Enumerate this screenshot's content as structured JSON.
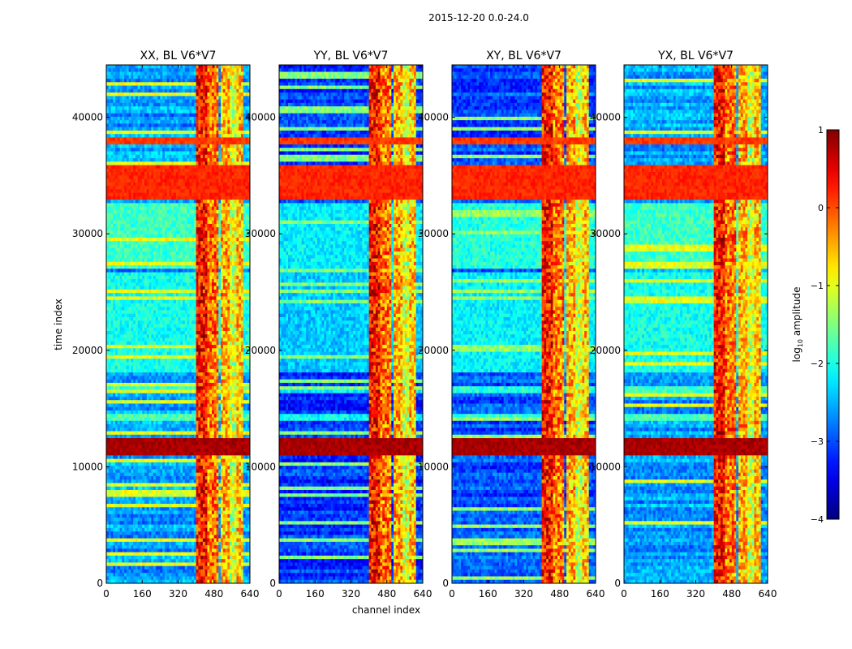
{
  "suptitle": "2015-12-20 0.0-24.0",
  "chart_data": {
    "type": "heatmap",
    "xlabel": "channel index",
    "ylabel": "time index",
    "xlim": [
      0,
      640
    ],
    "ylim": [
      0,
      44500
    ],
    "xticks": [
      0,
      160,
      320,
      480,
      640
    ],
    "yticks": [
      0,
      10000,
      20000,
      30000,
      40000
    ],
    "panels": [
      {
        "title": "XX, BL V6*V7",
        "base": -2.6,
        "colorful": 0.55
      },
      {
        "title": "YY, BL V6*V7",
        "base": -3.1,
        "colorful": 0.25
      },
      {
        "title": "XY, BL V6*V7",
        "base": -3.0,
        "colorful": 0.45
      },
      {
        "title": "YX, BL V6*V7",
        "base": -2.6,
        "colorful": 0.55
      }
    ],
    "rfi_channel_bands": [
      [
        400,
        445,
        0.6
      ],
      [
        445,
        500,
        0.1
      ],
      [
        510,
        545,
        -0.2
      ],
      [
        550,
        580,
        -0.8
      ],
      [
        585,
        610,
        -0.3
      ]
    ],
    "time_bands": [
      {
        "from": 32800,
        "to": 35800,
        "value": 0.2,
        "note": "strong broadband"
      },
      {
        "from": 11000,
        "to": 12500,
        "value": 0.8,
        "note": "strong broadband burst"
      },
      {
        "from": 37800,
        "to": 38300,
        "value": 0.1
      },
      {
        "from": 13800,
        "to": 14500,
        "value": -1.2
      },
      {
        "from": 16200,
        "to": 17000,
        "value": -1.3
      },
      {
        "from": 18000,
        "to": 26700,
        "value": -1.5,
        "note": "elevated noise"
      },
      {
        "from": 27000,
        "to": 32700,
        "value": -1.3,
        "note": "elevated noise"
      }
    ],
    "colorbar": {
      "label": "log",
      "label_sub": "10",
      "label_tail": " amplitude",
      "min": -4,
      "max": 1,
      "ticks": [
        1,
        0,
        -1,
        -2,
        -3,
        -4
      ],
      "tick_labels": [
        "1",
        "0",
        "−1",
        "−2",
        "−3",
        "−4"
      ],
      "colormap": "jet"
    }
  }
}
